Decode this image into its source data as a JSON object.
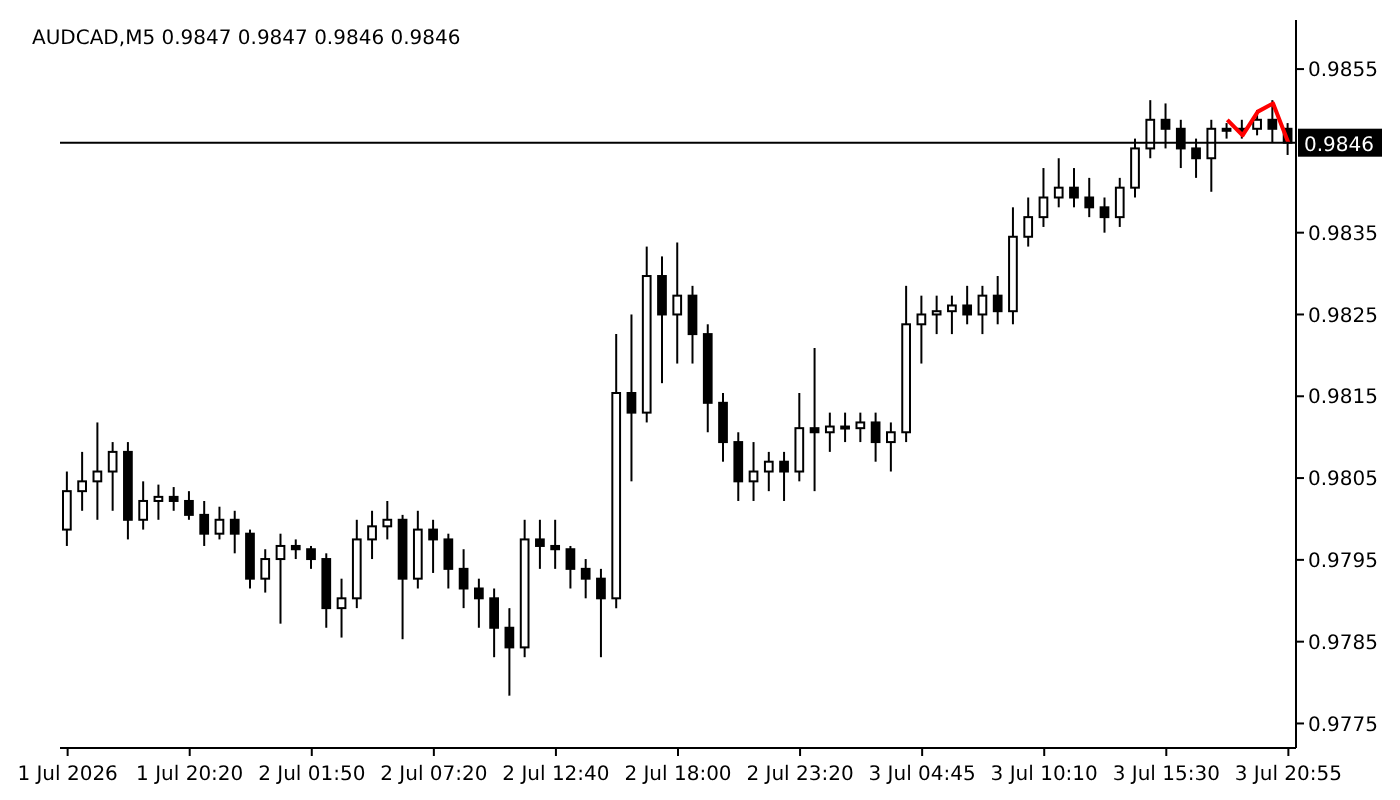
{
  "chart_data": {
    "type": "candlestick",
    "title": "AUDCAD,M5  0.9847 0.9847 0.9846 0.9846",
    "categories": [
      "1 Jul 2026",
      null,
      null,
      null,
      null,
      null,
      null,
      null,
      "1 Jul 20:20",
      null,
      null,
      null,
      null,
      null,
      null,
      null,
      "2 Jul 01:50",
      null,
      null,
      null,
      null,
      null,
      null,
      null,
      "2 Jul 07:20",
      null,
      null,
      null,
      null,
      null,
      null,
      null,
      "2 Jul 12:40",
      null,
      null,
      null,
      null,
      null,
      null,
      null,
      "2 Jul 18:00",
      null,
      null,
      null,
      null,
      null,
      null,
      null,
      "2 Jul 23:20",
      null,
      null,
      null,
      null,
      null,
      null,
      null,
      "3 Jul 04:45",
      null,
      null,
      null,
      null,
      null,
      null,
      null,
      "3 Jul 10:10",
      null,
      null,
      null,
      null,
      null,
      null,
      null,
      "3 Jul 15:30",
      null,
      null,
      null,
      null,
      null,
      null,
      null,
      "3 Jul 20:55"
    ],
    "series": [
      {
        "color": "#000000",
        "ohlc": [
          [
            0.97987,
            0.98058,
            0.97967,
            0.98034
          ],
          [
            0.98034,
            0.98082,
            0.9801,
            0.98046
          ],
          [
            0.98046,
            0.98118,
            0.97999,
            0.98058
          ],
          [
            0.98058,
            0.98094,
            0.9801,
            0.98082
          ],
          [
            0.98082,
            0.98094,
            0.97975,
            0.97999
          ],
          [
            0.97999,
            0.98046,
            0.97987,
            0.98022
          ],
          [
            0.98022,
            0.98042,
            0.97999,
            0.98027
          ],
          [
            0.98027,
            0.98039,
            0.9801,
            0.98022
          ],
          [
            0.98022,
            0.98034,
            0.97999,
            0.98005
          ],
          [
            0.98005,
            0.98022,
            0.97967,
            0.97982
          ],
          [
            0.97982,
            0.98015,
            0.97975,
            0.97999
          ],
          [
            0.97999,
            0.9801,
            0.97958,
            0.97982
          ],
          [
            0.97982,
            0.97987,
            0.97915,
            0.97927
          ],
          [
            0.97927,
            0.97963,
            0.9791,
            0.97951
          ],
          [
            0.97951,
            0.97982,
            0.97872,
            0.97967
          ],
          [
            0.97967,
            0.97975,
            0.97951,
            0.97963
          ],
          [
            0.97963,
            0.97967,
            0.97939,
            0.97951
          ],
          [
            0.97951,
            0.97958,
            0.97867,
            0.97891
          ],
          [
            0.97891,
            0.97927,
            0.97855,
            0.97903
          ],
          [
            0.97903,
            0.97999,
            0.97891,
            0.97975
          ],
          [
            0.97975,
            0.9801,
            0.97951,
            0.97991
          ],
          [
            0.97991,
            0.98022,
            0.97975,
            0.97999
          ],
          [
            0.97999,
            0.98005,
            0.97853,
            0.97927
          ],
          [
            0.97927,
            0.9801,
            0.97915,
            0.97987
          ],
          [
            0.97987,
            0.97999,
            0.97934,
            0.97975
          ],
          [
            0.97975,
            0.97982,
            0.97915,
            0.97939
          ],
          [
            0.97939,
            0.97963,
            0.97891,
            0.97915
          ],
          [
            0.97915,
            0.97927,
            0.97867,
            0.97903
          ],
          [
            0.97903,
            0.97915,
            0.97831,
            0.97867
          ],
          [
            0.97867,
            0.97891,
            0.97784,
            0.97843
          ],
          [
            0.97843,
            0.97999,
            0.97831,
            0.97975
          ],
          [
            0.97975,
            0.97999,
            0.97939,
            0.97967
          ],
          [
            0.97967,
            0.97999,
            0.97939,
            0.97963
          ],
          [
            0.97963,
            0.97967,
            0.97915,
            0.97939
          ],
          [
            0.97939,
            0.97951,
            0.97903,
            0.97927
          ],
          [
            0.97927,
            0.97939,
            0.97831,
            0.97903
          ],
          [
            0.97903,
            0.98226,
            0.97891,
            0.98154
          ],
          [
            0.98154,
            0.9825,
            0.98046,
            0.9813
          ],
          [
            0.9813,
            0.98333,
            0.98118,
            0.98297
          ],
          [
            0.98297,
            0.98321,
            0.98166,
            0.9825
          ],
          [
            0.9825,
            0.98338,
            0.9819,
            0.98273
          ],
          [
            0.98273,
            0.98285,
            0.9819,
            0.98226
          ],
          [
            0.98226,
            0.98238,
            0.98106,
            0.98142
          ],
          [
            0.98142,
            0.98154,
            0.9807,
            0.98094
          ],
          [
            0.98094,
            0.98106,
            0.98022,
            0.98046
          ],
          [
            0.98046,
            0.98094,
            0.98022,
            0.98058
          ],
          [
            0.98058,
            0.98082,
            0.98034,
            0.9807
          ],
          [
            0.9807,
            0.98082,
            0.98022,
            0.98058
          ],
          [
            0.98058,
            0.98154,
            0.98046,
            0.98111
          ],
          [
            0.98111,
            0.98209,
            0.98034,
            0.98106
          ],
          [
            0.98106,
            0.9813,
            0.98082,
            0.98113
          ],
          [
            0.98113,
            0.9813,
            0.98094,
            0.98111
          ],
          [
            0.98111,
            0.9813,
            0.98094,
            0.98118
          ],
          [
            0.98118,
            0.9813,
            0.9807,
            0.98094
          ],
          [
            0.98094,
            0.98118,
            0.98058,
            0.98106
          ],
          [
            0.98106,
            0.98285,
            0.98094,
            0.98238
          ],
          [
            0.98238,
            0.98273,
            0.9819,
            0.9825
          ],
          [
            0.9825,
            0.98273,
            0.98226,
            0.98254
          ],
          [
            0.98254,
            0.98273,
            0.98226,
            0.98261
          ],
          [
            0.98261,
            0.98285,
            0.98238,
            0.9825
          ],
          [
            0.9825,
            0.98285,
            0.98226,
            0.98273
          ],
          [
            0.98273,
            0.98297,
            0.98238,
            0.98254
          ],
          [
            0.98254,
            0.98381,
            0.98238,
            0.98345
          ],
          [
            0.98345,
            0.98393,
            0.98333,
            0.98369
          ],
          [
            0.98369,
            0.98429,
            0.98357,
            0.98393
          ],
          [
            0.98393,
            0.98441,
            0.98381,
            0.98405
          ],
          [
            0.98405,
            0.98429,
            0.98381,
            0.98393
          ],
          [
            0.98393,
            0.98417,
            0.98369,
            0.98381
          ],
          [
            0.98381,
            0.98393,
            0.9835,
            0.98369
          ],
          [
            0.98369,
            0.98417,
            0.98357,
            0.98405
          ],
          [
            0.98405,
            0.98465,
            0.98393,
            0.98453
          ],
          [
            0.98453,
            0.98512,
            0.98441,
            0.98488
          ],
          [
            0.98488,
            0.98508,
            0.98453,
            0.98477
          ],
          [
            0.98477,
            0.98488,
            0.98429,
            0.98453
          ],
          [
            0.98453,
            0.98465,
            0.98417,
            0.98441
          ],
          [
            0.98441,
            0.98488,
            0.984,
            0.98477
          ],
          [
            0.98477,
            0.98484,
            0.98465,
            0.98477
          ],
          [
            0.98477,
            0.98488,
            0.98465,
            0.98477
          ],
          [
            0.98477,
            0.985,
            0.98469,
            0.98488
          ],
          [
            0.98488,
            0.98512,
            0.9846,
            0.98477
          ],
          [
            0.98477,
            0.98484,
            0.98445,
            0.9846
          ]
        ]
      },
      {
        "type": "line",
        "color": "#ff0000",
        "values": [
          null,
          null,
          null,
          null,
          null,
          null,
          null,
          null,
          null,
          null,
          null,
          null,
          null,
          null,
          null,
          null,
          null,
          null,
          null,
          null,
          null,
          null,
          null,
          null,
          null,
          null,
          null,
          null,
          null,
          null,
          null,
          null,
          null,
          null,
          null,
          null,
          null,
          null,
          null,
          null,
          null,
          null,
          null,
          null,
          null,
          null,
          null,
          null,
          null,
          null,
          null,
          null,
          null,
          null,
          null,
          null,
          null,
          null,
          null,
          null,
          null,
          null,
          null,
          null,
          null,
          null,
          null,
          null,
          null,
          null,
          null,
          null,
          null,
          null,
          null,
          null,
          0.98488,
          0.98469,
          0.98498,
          0.98508,
          0.9846
        ]
      }
    ],
    "ylim": [
      0.9772,
      0.9861
    ],
    "yticks": [
      0.9775,
      0.9785,
      0.9795,
      0.9805,
      0.9815,
      0.9825,
      0.9835,
      0.9855
    ],
    "ref_lines": [
      {
        "axis": "y",
        "value": 0.9846,
        "label": "0.9846",
        "color": "#000000"
      }
    ],
    "grid": false,
    "legend": false
  }
}
